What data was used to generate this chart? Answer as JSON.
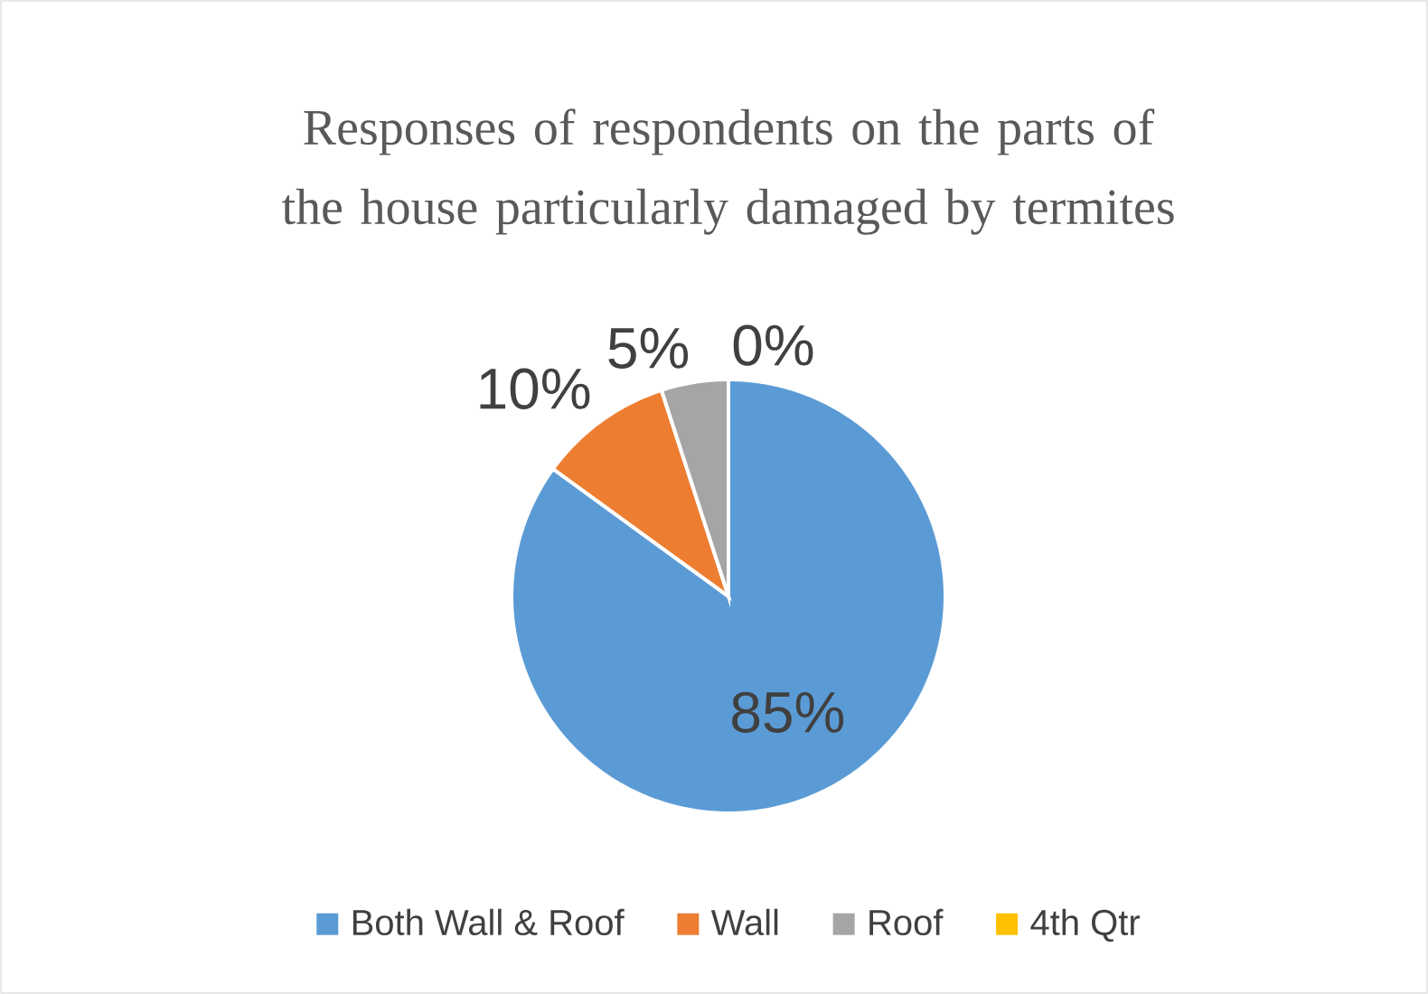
{
  "chart_data": {
    "type": "pie",
    "title": "Responses of respondents on the parts of the house particularly damaged by termites",
    "categories": [
      "Both Wall & Roof",
      "Wall",
      "Roof",
      "4th Qtr"
    ],
    "values": [
      85,
      10,
      5,
      0
    ],
    "value_labels": [
      "85%",
      "10%",
      "5%",
      "0%"
    ],
    "colors": [
      "#5b9bd5",
      "#ed7d31",
      "#a5a5a5",
      "#ffc000"
    ],
    "legend": "bottom"
  }
}
